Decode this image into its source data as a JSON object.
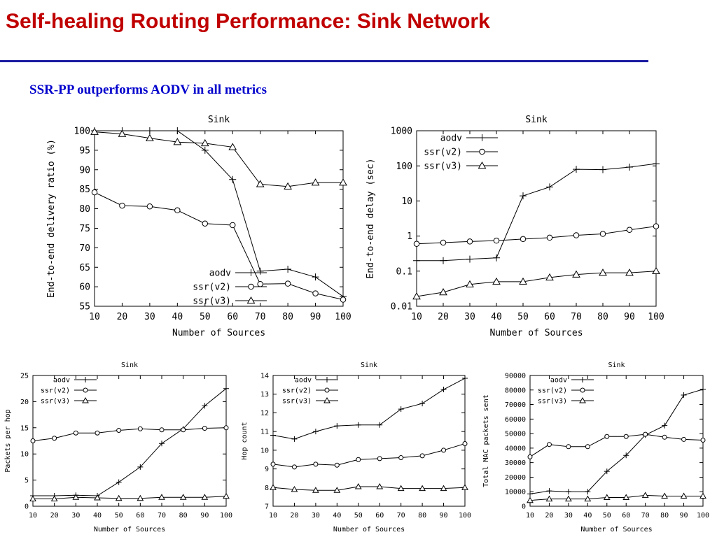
{
  "slide": {
    "title": "Self-healing Routing Performance: Sink Network",
    "subtitle": "SSR-PP outperforms AODV in all metrics"
  },
  "chart_data": [
    {
      "type": "line",
      "title": "Sink",
      "xlabel": "Number of Sources",
      "ylabel": "End-to-end delivery ratio (%)",
      "x": [
        10,
        20,
        30,
        40,
        50,
        60,
        70,
        80,
        90,
        100
      ],
      "xlim": [
        10,
        100
      ],
      "ylim": [
        55,
        100
      ],
      "yscale": "linear",
      "xticks": [
        10,
        20,
        30,
        40,
        50,
        60,
        70,
        80,
        90,
        100
      ],
      "yticks": [
        55,
        60,
        65,
        70,
        75,
        80,
        85,
        90,
        95,
        100
      ],
      "ytick_labels": [
        "55",
        "60",
        "65",
        "70",
        "75",
        "80",
        "85",
        "90",
        "95",
        "100"
      ],
      "legend_position": "bottom-right",
      "series": [
        {
          "name": "aodv",
          "marker": "plus",
          "values": [
            100,
            100,
            100,
            100,
            95,
            87.5,
            64,
            64.5,
            62.5,
            57.5
          ]
        },
        {
          "name": "ssr(v2)",
          "marker": "circle",
          "values": [
            84.2,
            80.8,
            80.6,
            79.6,
            76.2,
            75.8,
            60.7,
            60.8,
            58.3,
            56.7
          ]
        },
        {
          "name": "ssr(v3)",
          "marker": "triangle",
          "values": [
            99.7,
            99.2,
            98.1,
            97.1,
            96.8,
            95.8,
            86.3,
            85.7,
            86.7,
            86.7
          ]
        }
      ]
    },
    {
      "type": "line",
      "title": "Sink",
      "xlabel": "Number of Sources",
      "ylabel": "End-to-end delay (sec)",
      "x": [
        10,
        20,
        30,
        40,
        50,
        60,
        70,
        80,
        90,
        100
      ],
      "xlim": [
        10,
        100
      ],
      "ylim": [
        0.01,
        1000
      ],
      "yscale": "log",
      "xticks": [
        10,
        20,
        30,
        40,
        50,
        60,
        70,
        80,
        90,
        100
      ],
      "yticks": [
        0.01,
        0.1,
        1,
        10,
        100,
        1000
      ],
      "ytick_labels": [
        "0.01",
        "0.1",
        "1",
        "10",
        "100",
        "1000"
      ],
      "legend_position": "top-left",
      "series": [
        {
          "name": "aodv",
          "marker": "plus",
          "values": [
            0.2,
            0.2,
            0.22,
            0.24,
            14,
            25,
            80,
            78,
            92,
            115
          ]
        },
        {
          "name": "ssr(v2)",
          "marker": "circle",
          "values": [
            0.6,
            0.65,
            0.7,
            0.74,
            0.82,
            0.9,
            1.05,
            1.15,
            1.5,
            1.9
          ]
        },
        {
          "name": "ssr(v3)",
          "marker": "triangle",
          "values": [
            0.019,
            0.025,
            0.042,
            0.05,
            0.05,
            0.066,
            0.08,
            0.09,
            0.09,
            0.1
          ]
        }
      ]
    },
    {
      "type": "line",
      "title": "Sink",
      "xlabel": "Number of Sources",
      "ylabel": "Packets per hop",
      "x": [
        10,
        20,
        30,
        40,
        50,
        60,
        70,
        80,
        90,
        100
      ],
      "xlim": [
        10,
        100
      ],
      "ylim": [
        0,
        25
      ],
      "yscale": "linear",
      "xticks": [
        10,
        20,
        30,
        40,
        50,
        60,
        70,
        80,
        90,
        100
      ],
      "yticks": [
        0,
        5,
        10,
        15,
        20,
        25
      ],
      "ytick_labels": [
        "0",
        "5",
        "10",
        "15",
        "20",
        "25"
      ],
      "legend_position": "top-left",
      "series": [
        {
          "name": "aodv",
          "marker": "plus",
          "values": [
            2.0,
            2.0,
            2.1,
            2.0,
            4.6,
            7.5,
            12.0,
            14.8,
            19.2,
            22.5
          ]
        },
        {
          "name": "ssr(v2)",
          "marker": "circle",
          "values": [
            12.5,
            13.0,
            14.0,
            14.0,
            14.5,
            14.8,
            14.6,
            14.6,
            14.9,
            15.0
          ]
        },
        {
          "name": "ssr(v3)",
          "marker": "triangle",
          "values": [
            1.4,
            1.4,
            1.7,
            1.6,
            1.5,
            1.5,
            1.7,
            1.7,
            1.7,
            1.9
          ]
        }
      ]
    },
    {
      "type": "line",
      "title": "Sink",
      "xlabel": "Number of Sources",
      "ylabel": "Hop count",
      "x": [
        10,
        20,
        30,
        40,
        50,
        60,
        70,
        80,
        90,
        100
      ],
      "xlim": [
        10,
        100
      ],
      "ylim": [
        7,
        14
      ],
      "yscale": "linear",
      "xticks": [
        10,
        20,
        30,
        40,
        50,
        60,
        70,
        80,
        90,
        100
      ],
      "yticks": [
        7,
        8,
        9,
        10,
        11,
        12,
        13,
        14
      ],
      "ytick_labels": [
        "7",
        "8",
        "9",
        "10",
        "11",
        "12",
        "13",
        "14"
      ],
      "legend_position": "top-left",
      "series": [
        {
          "name": "aodv",
          "marker": "plus",
          "values": [
            10.8,
            10.6,
            11.0,
            11.3,
            11.35,
            11.35,
            12.2,
            12.5,
            13.25,
            13.85
          ]
        },
        {
          "name": "ssr(v2)",
          "marker": "circle",
          "values": [
            9.25,
            9.1,
            9.25,
            9.2,
            9.5,
            9.55,
            9.6,
            9.7,
            10.0,
            10.35
          ]
        },
        {
          "name": "ssr(v3)",
          "marker": "triangle",
          "values": [
            8.0,
            7.9,
            7.85,
            7.85,
            8.05,
            8.05,
            7.95,
            7.95,
            7.95,
            8.0
          ]
        }
      ]
    },
    {
      "type": "line",
      "title": "Sink",
      "xlabel": "Number of Sources",
      "ylabel": "Total MAC packets sent",
      "x": [
        10,
        20,
        30,
        40,
        50,
        60,
        70,
        80,
        90,
        100
      ],
      "xlim": [
        10,
        100
      ],
      "ylim": [
        0,
        90000
      ],
      "yscale": "linear",
      "xticks": [
        10,
        20,
        30,
        40,
        50,
        60,
        70,
        80,
        90,
        100
      ],
      "yticks": [
        0,
        10000,
        20000,
        30000,
        40000,
        50000,
        60000,
        70000,
        80000,
        90000
      ],
      "ytick_labels": [
        "0",
        "10000",
        "20000",
        "30000",
        "40000",
        "50000",
        "60000",
        "70000",
        "80000",
        "90000"
      ],
      "legend_position": "top-left",
      "series": [
        {
          "name": "aodv",
          "marker": "plus",
          "values": [
            8500,
            10500,
            10000,
            10000,
            24000,
            35000,
            49000,
            55500,
            76500,
            80500
          ]
        },
        {
          "name": "ssr(v2)",
          "marker": "circle",
          "values": [
            34000,
            42500,
            41000,
            41000,
            48000,
            48000,
            49500,
            47500,
            46000,
            45500
          ]
        },
        {
          "name": "ssr(v3)",
          "marker": "triangle",
          "values": [
            4000,
            5000,
            5000,
            5000,
            6000,
            6000,
            7500,
            7000,
            7000,
            7000
          ]
        }
      ]
    }
  ]
}
